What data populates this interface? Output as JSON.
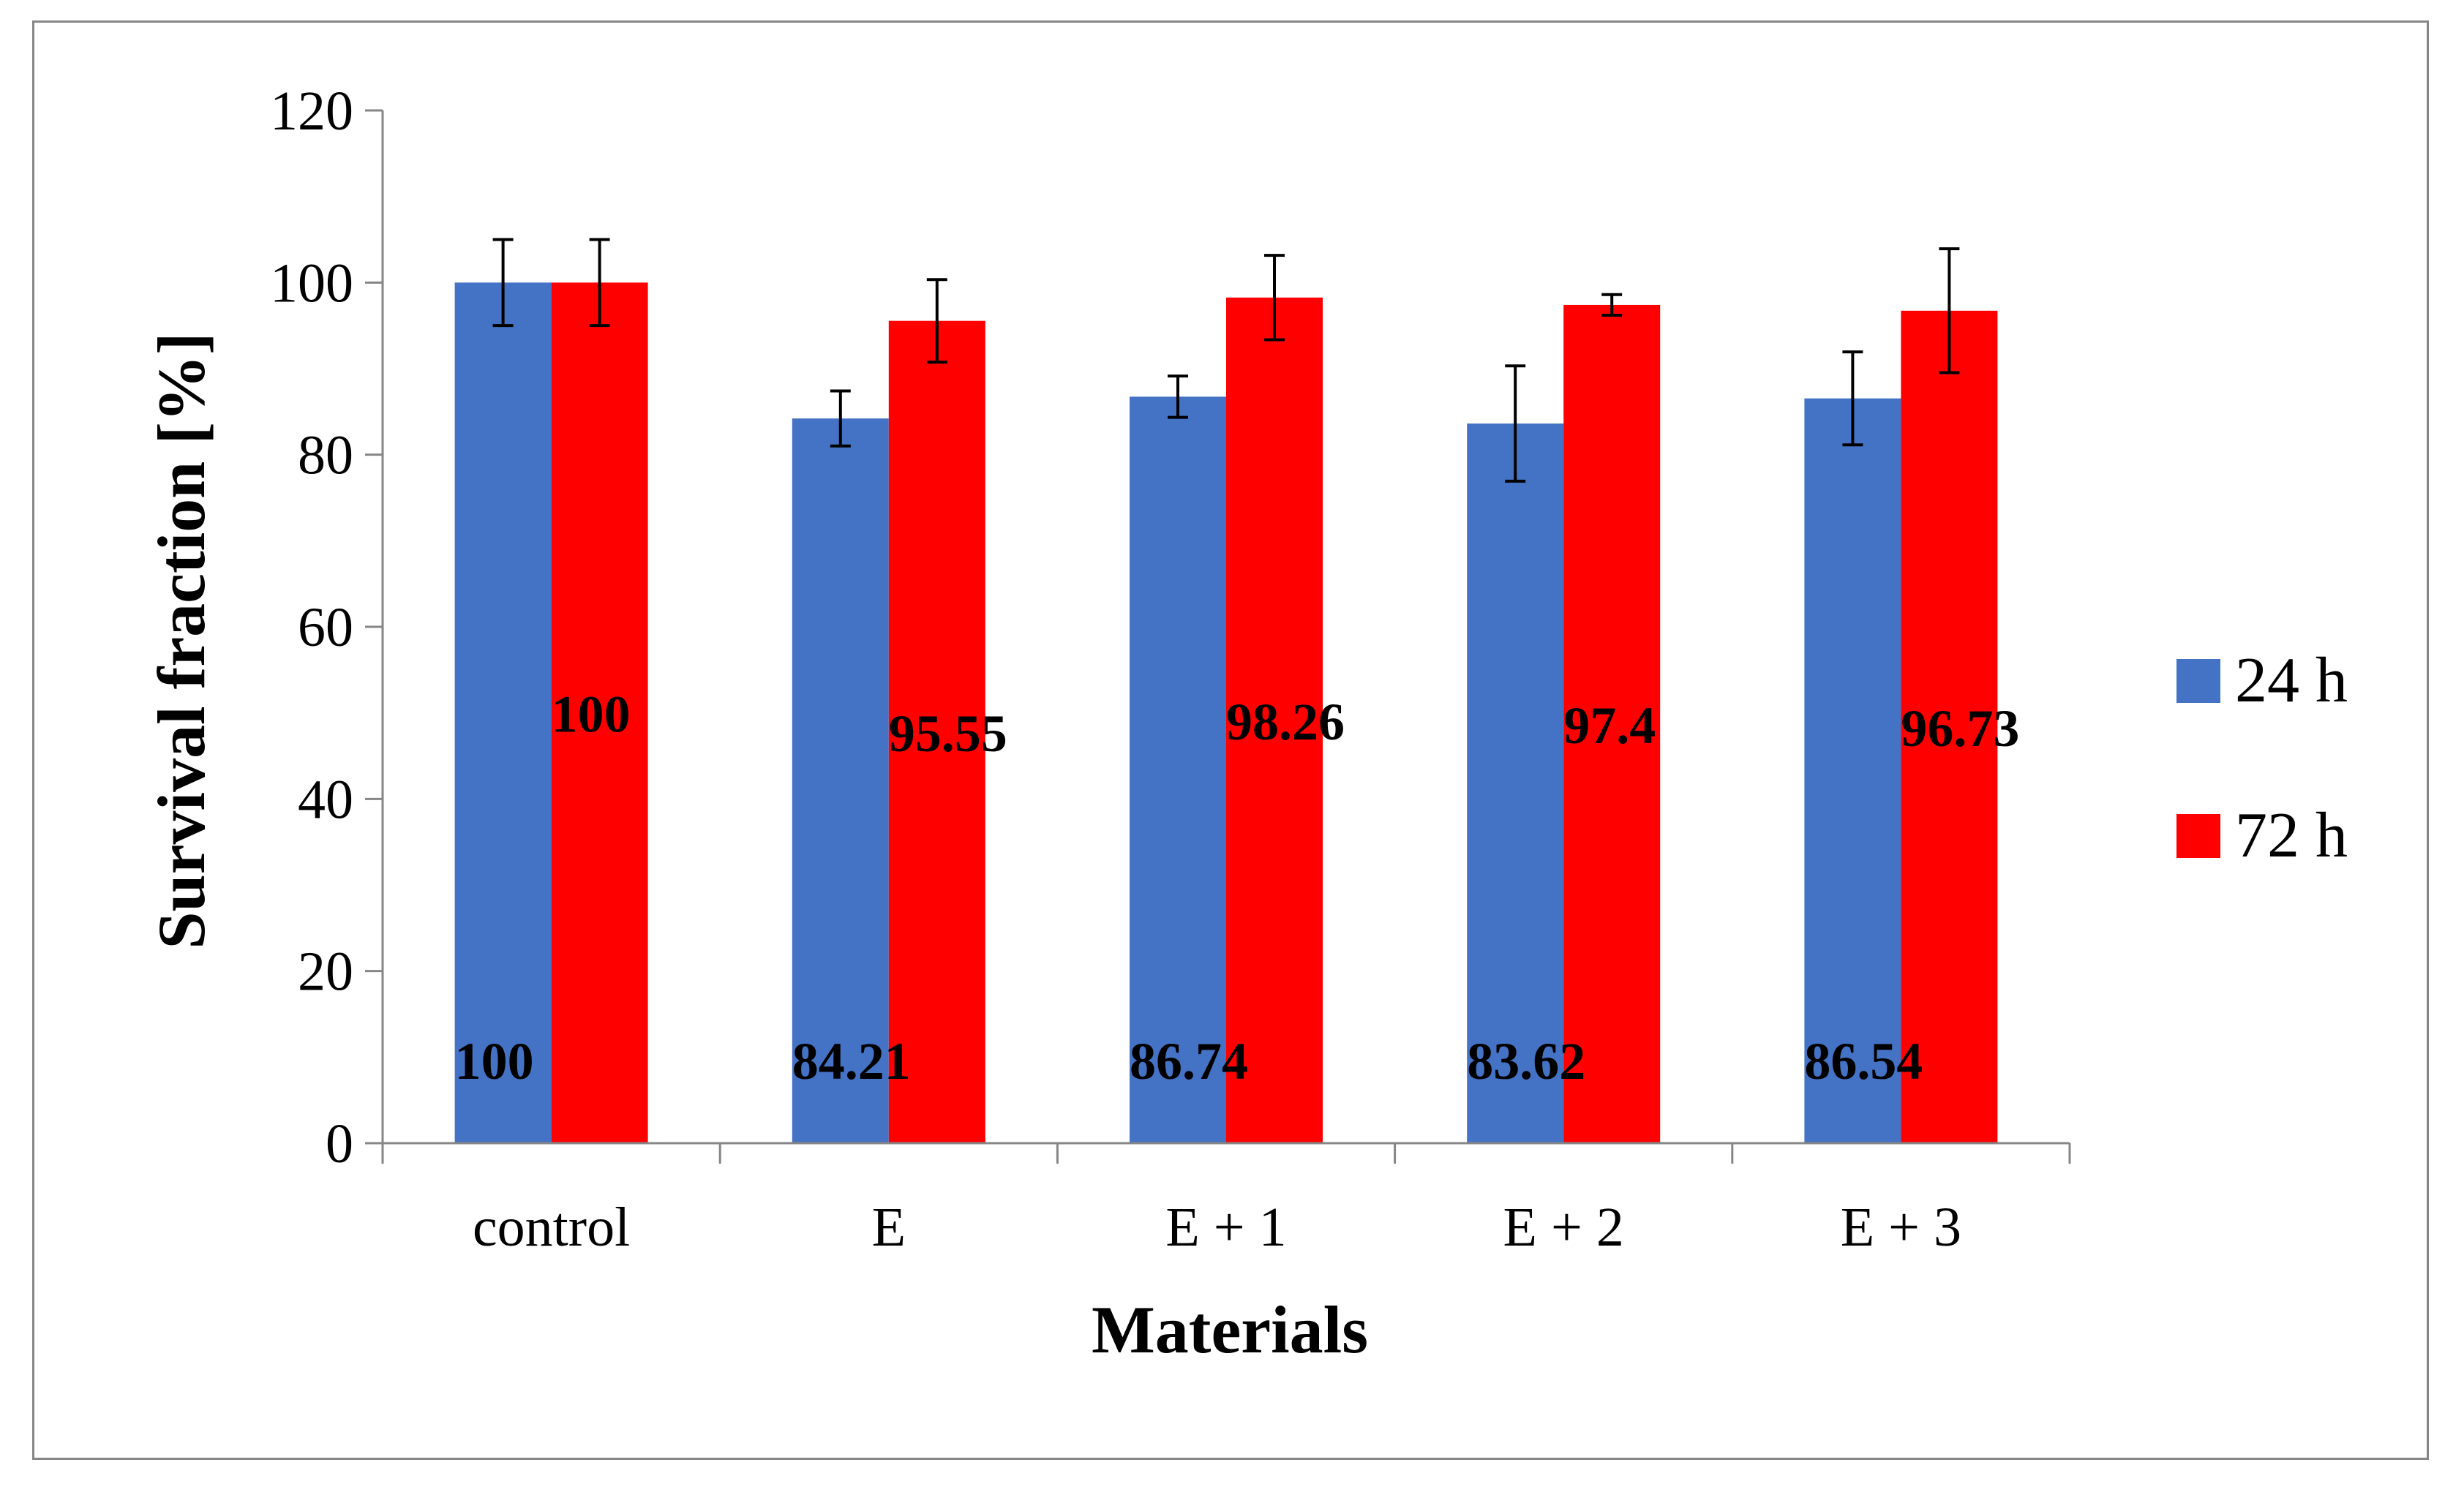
{
  "chart_data": {
    "type": "bar",
    "title": "",
    "xlabel": "Materials",
    "ylabel": "Survival fraction [%]",
    "categories": [
      "control",
      "E",
      "E + 1",
      "E + 2",
      "E + 3"
    ],
    "ylim": [
      0,
      120
    ],
    "yticks": [
      0,
      20,
      40,
      60,
      80,
      100,
      120
    ],
    "grid": false,
    "legend_position": "right",
    "series": [
      {
        "name": "24 h",
        "color": "#4472C4",
        "values": [
          100,
          84.21,
          86.74,
          83.62,
          86.54
        ],
        "errors": [
          5,
          3.2,
          2.4,
          6.7,
          5.4
        ],
        "labels": [
          "100",
          "84.21",
          "86.74",
          "83.62",
          "86.54"
        ]
      },
      {
        "name": "72 h",
        "color": "#FF0000",
        "values": [
          100,
          95.55,
          98.26,
          97.4,
          96.73
        ],
        "errors": [
          5,
          4.8,
          4.9,
          1.2,
          7.2
        ],
        "labels": [
          "100",
          "95.55",
          "98.26",
          "97.4",
          "96.73"
        ]
      }
    ]
  }
}
